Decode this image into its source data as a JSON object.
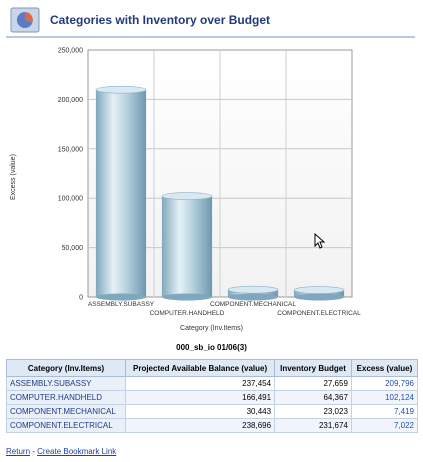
{
  "header": {
    "title": "Categories with Inventory over Budget",
    "icon": "report-icon"
  },
  "chart_data": {
    "type": "bar",
    "categories": [
      "ASSEMBLY.SUBASSY",
      "COMPUTER.HANDHELD",
      "COMPONENT.MECHANICAL",
      "COMPONENT.ELECTRICAL"
    ],
    "values": [
      209796,
      102124,
      7419,
      7022
    ],
    "xlabel": "Category (Inv.Items)",
    "ylabel": "Excess (value)",
    "ylim": [
      0,
      250000
    ],
    "yticks": [
      0,
      50000,
      100000,
      150000,
      200000,
      250000
    ],
    "ytick_labels": [
      "0",
      "50,000",
      "100,000",
      "150,000",
      "200,000",
      "250,000"
    ],
    "grid": true,
    "bar_color": "#a9c8d8"
  },
  "subtitle": "000_sb_io 01/06(3)",
  "table": {
    "headers": [
      "Category (Inv.Items)",
      "Projected Available Balance (value)",
      "Inventory Budget",
      "Excess (value)"
    ],
    "rows": [
      {
        "category": "ASSEMBLY.SUBASSY",
        "balance": "237,454",
        "budget": "27,659",
        "excess": "209,796"
      },
      {
        "category": "COMPUTER.HANDHELD",
        "balance": "166,491",
        "budget": "64,367",
        "excess": "102,124"
      },
      {
        "category": "COMPONENT.MECHANICAL",
        "balance": "30,443",
        "budget": "23,023",
        "excess": "7,419"
      },
      {
        "category": "COMPONENT.ELECTRICAL",
        "balance": "238,696",
        "budget": "231,674",
        "excess": "7,022"
      }
    ]
  },
  "links": {
    "return": "Return",
    "separator": " - ",
    "bookmark": "Create Bookmark Link"
  }
}
